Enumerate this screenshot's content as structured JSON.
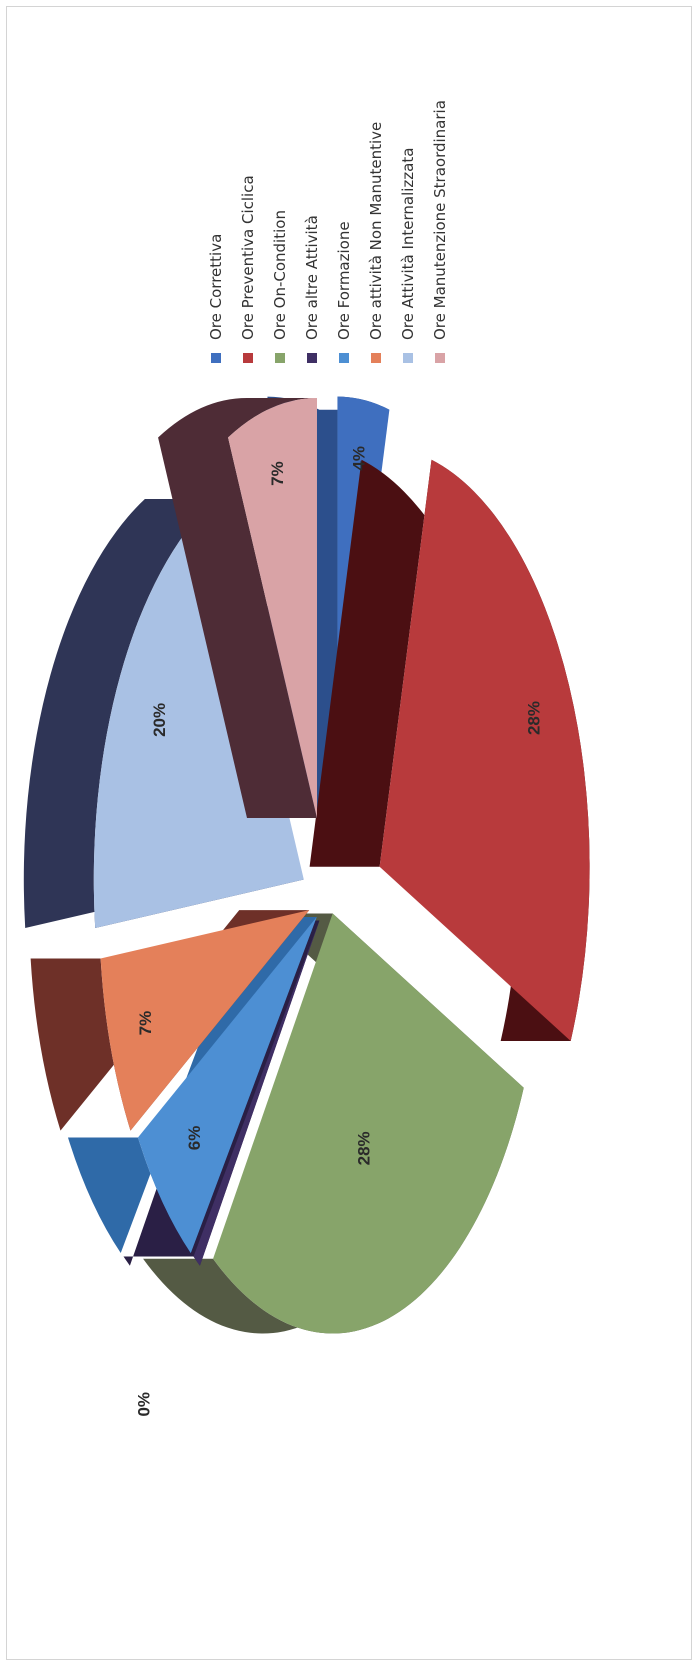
{
  "chart_data": {
    "type": "pie",
    "title": "",
    "labels": [
      "Ore Correttiva",
      "Ore Preventiva Ciclica",
      "Ore On-Condition",
      "Ore altre Attività",
      "Ore Formazione",
      "Ore attività Non Manutentive",
      "Ore Attività Internalizzata",
      "Ore Manutenzione Straordinaria"
    ],
    "values": [
      4,
      28,
      28,
      0,
      6,
      7,
      20,
      7
    ],
    "value_labels": [
      "4%",
      "28%",
      "28%",
      "0%",
      "6%",
      "7%",
      "20%",
      "7%"
    ],
    "colors": [
      "#3f6fbf",
      "#b83a3c",
      "#87a46a",
      "#3f2f64",
      "#4d8fd3",
      "#e4805a",
      "#a9c1e4",
      "#d9a3a6"
    ],
    "side_colors": [
      "#2c4f8c",
      "#4b0f12",
      "#545a44",
      "#2a1f45",
      "#2f6aa8",
      "#6e3028",
      "#2f3556",
      "#4e2c36"
    ],
    "legend_position": "right",
    "orientation": "rotated-90",
    "style": "3d-exploded"
  }
}
